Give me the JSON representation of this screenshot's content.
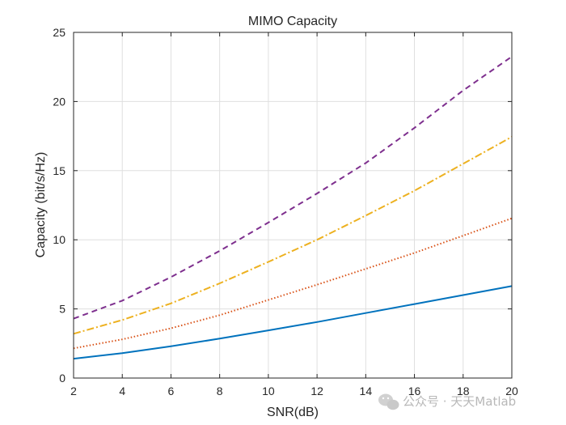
{
  "chart_data": {
    "type": "line",
    "title": "MIMO Capacity",
    "xlabel": "SNR(dB)",
    "ylabel": "Capacity (bit/s/Hz)",
    "xlim": [
      2,
      20
    ],
    "ylim": [
      0,
      25
    ],
    "xticks": [
      2,
      4,
      6,
      8,
      10,
      12,
      14,
      16,
      18,
      20
    ],
    "yticks": [
      0,
      5,
      10,
      15,
      20,
      25
    ],
    "grid": true,
    "x": [
      2,
      4,
      6,
      8,
      10,
      12,
      14,
      16,
      18,
      20
    ],
    "series": [
      {
        "values": [
          1.4,
          1.8,
          2.3,
          2.85,
          3.45,
          4.05,
          4.7,
          5.35,
          6.0,
          6.65
        ],
        "color": "#0072BD",
        "style": "solid"
      },
      {
        "values": [
          2.15,
          2.8,
          3.6,
          4.55,
          5.65,
          6.75,
          7.9,
          9.05,
          10.3,
          11.55
        ],
        "color": "#D95319",
        "style": "dotted"
      },
      {
        "values": [
          3.2,
          4.2,
          5.4,
          6.85,
          8.4,
          10.0,
          11.75,
          13.55,
          15.5,
          17.45
        ],
        "color": "#EDB120",
        "style": "dashdot"
      },
      {
        "values": [
          4.3,
          5.6,
          7.3,
          9.2,
          11.25,
          13.35,
          15.55,
          18.1,
          20.8,
          23.25
        ],
        "color": "#7E2F8E",
        "style": "dashed"
      }
    ]
  },
  "watermark": {
    "text": "公众号 · 天天Matlab",
    "icon": "wechat-icon"
  }
}
